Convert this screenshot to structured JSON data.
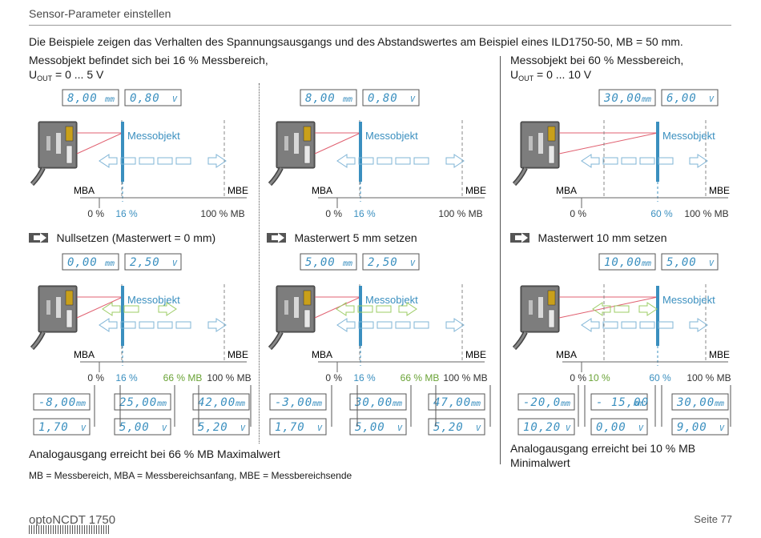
{
  "header": {
    "title": "Sensor-Parameter einstellen"
  },
  "intro": "Die Beispiele zeigen das Verhalten des Spannungsausgangs und des Abstandswertes am Beispiel eines ILD1750-50, MB = 50 mm.",
  "col_left": {
    "caption1": "Messobjekt befindet sich bei 16 % Messbereich,",
    "caption2_u": "U",
    "caption2_sub": "OUT",
    "caption2_rest": " = 0 ... 5 V"
  },
  "col_right": {
    "caption1": "Messobjekt bei 60 % Messbereich,",
    "caption2_u": "U",
    "caption2_sub": "OUT",
    "caption2_rest": " = 0 ... 10 V"
  },
  "labels": {
    "messobjekt": "Messobjekt",
    "mba": "MBA",
    "mbe": "MBE",
    "p0": "0 %",
    "p16": "16 %",
    "p60": "60 %",
    "p66": "66 % MB",
    "p10": "10 %",
    "p100": "100 % MB"
  },
  "steps": {
    "s1": "Nullsetzen (Masterwert = 0 mm)",
    "s2": "Masterwert 5 mm setzen",
    "s3": "Masterwert 10 mm setzen"
  },
  "displays": {
    "a1_mm": "8,00",
    "a1_v": "0,80",
    "a2_mm": "8,00",
    "a2_v": "0,80",
    "a3_mm": "30,00",
    "a3_v": "6,00",
    "b1_mm": "0,00",
    "b1_v": "2,50",
    "b2_mm": "5,00",
    "b2_v": "2,50",
    "b3_mm": "10,00",
    "b3_v": "5,00",
    "c1": [
      "-8,00",
      "25,00",
      "42,00"
    ],
    "d1": [
      "1,70",
      "5,00",
      "5,20"
    ],
    "c2": [
      "-3,00",
      "30,00",
      "47,00"
    ],
    "d2": [
      "1,70",
      "5,00",
      "5,20"
    ],
    "c3": [
      "-20,0",
      "- 15,00",
      "30,00"
    ],
    "d3": [
      "10,20",
      "0,00",
      "9,00"
    ],
    "unit_mm": "mm",
    "unit_v": "V"
  },
  "notes": {
    "left": "Analogausgang erreicht bei 66 % MB Maximalwert",
    "right1": "Analogausgang erreicht bei 10 % MB",
    "right2": "Minimalwert"
  },
  "legend": "MB = Messbereich, MBA = Messbereichsanfang, MBE = Messbereichsende",
  "footer": {
    "left": "optoNCDT 1750",
    "right": "Seite 77"
  },
  "colors": {
    "accent": "#3a8fbf",
    "green": "#9ccc65",
    "laser": "#e06070"
  }
}
